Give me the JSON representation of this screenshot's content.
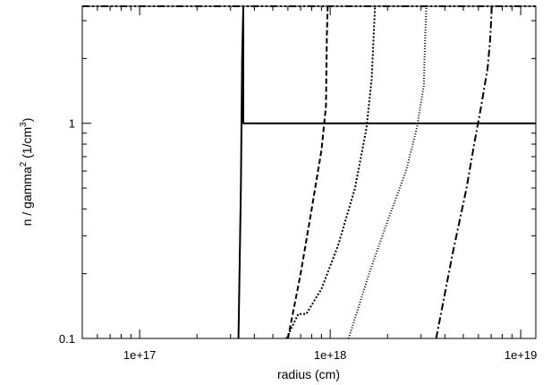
{
  "chart_data": {
    "type": "line",
    "xlabel": "radius (cm)",
    "ylabel": "n / gamma",
    "ylabel_exp": "2",
    "ylabel_unit_pre": " (1/cm",
    "ylabel_unit_exp": "3",
    "ylabel_unit_post": ")",
    "xscale": "log",
    "yscale": "log",
    "xlim": [
      5e+16,
      1.2e+19
    ],
    "ylim": [
      0.1,
      3.5
    ],
    "grid": false,
    "x_ticks": [
      {
        "value": 1e+17,
        "label": "1e+17"
      },
      {
        "value": 1e+18,
        "label": "1e+18"
      },
      {
        "value": 1e+19,
        "label": "1e+19"
      }
    ],
    "y_ticks": [
      {
        "value": 0.1,
        "label": "0.1"
      },
      {
        "value": 1,
        "label": "1"
      }
    ],
    "series": [
      {
        "style": "dashdotdot",
        "x": [
          5e+16,
          1.2e+19
        ],
        "y": [
          3.5,
          3.5
        ]
      },
      {
        "style": "solid",
        "x": [
          3.3e+17,
          3.4e+17,
          3.45e+17,
          3.5e+17,
          3.5e+17,
          1.2e+19
        ],
        "y": [
          0.1,
          0.5,
          2.0,
          3.5,
          1.0,
          1.0
        ]
      },
      {
        "style": "dashed",
        "x": [
          6e+17,
          7e+17,
          8e+17,
          9e+17,
          9.5e+17,
          9.6e+17,
          9.7e+17
        ],
        "y": [
          0.1,
          0.2,
          0.4,
          0.75,
          1.2,
          2.5,
          3.5
        ]
      },
      {
        "style": "dotted",
        "x": [
          5.9e+17,
          6.8e+17,
          7.5e+17,
          9e+17,
          1.1e+18,
          1.35e+18,
          1.55e+18,
          1.65e+18,
          1.7e+18,
          1.72e+18
        ],
        "y": [
          0.1,
          0.13,
          0.13,
          0.17,
          0.27,
          0.5,
          0.95,
          1.6,
          2.8,
          3.5
        ]
      },
      {
        "style": "fine-dotted",
        "x": [
          1.25e+18,
          1.6e+18,
          2e+18,
          2.5e+18,
          2.85e+18,
          3.1e+18,
          3.15e+18,
          3.2e+18
        ],
        "y": [
          0.1,
          0.2,
          0.35,
          0.6,
          0.95,
          1.5,
          2.5,
          3.5
        ]
      },
      {
        "style": "dashdot",
        "x": [
          3.6e+18,
          4.4e+18,
          5.2e+18,
          5.7e+18,
          6.2e+18,
          6.7e+18,
          6.9e+18,
          7e+18,
          7.05e+18
        ],
        "y": [
          0.1,
          0.25,
          0.5,
          0.8,
          1.2,
          1.8,
          2.4,
          3.0,
          3.5
        ]
      }
    ]
  }
}
